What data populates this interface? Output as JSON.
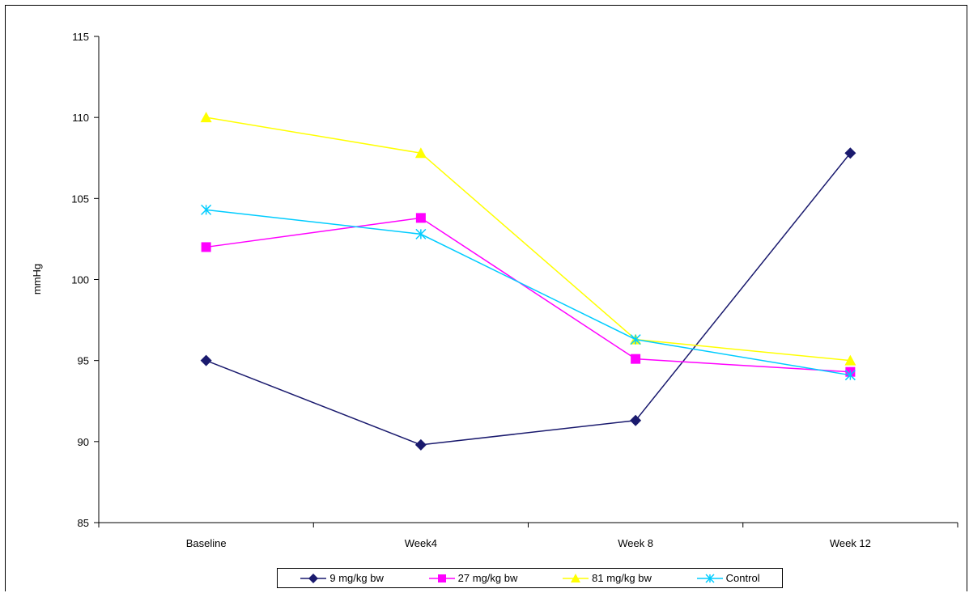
{
  "chart_data": {
    "type": "line",
    "title": "",
    "xlabel": "",
    "ylabel": "mmHg",
    "ylim": [
      85,
      115
    ],
    "yticks": [
      85,
      90,
      95,
      100,
      105,
      110,
      115
    ],
    "categories": [
      "Baseline",
      "Week4",
      "Week 8",
      "Week 12"
    ],
    "grid": false,
    "legend_position": "bottom",
    "series": [
      {
        "name": "9 mg/kg bw",
        "values": [
          95.0,
          89.8,
          91.3,
          107.8
        ],
        "color": "#1a1a6e",
        "marker": "diamond"
      },
      {
        "name": "27 mg/kg bw",
        "values": [
          102.0,
          103.8,
          95.1,
          94.3
        ],
        "color": "#ff00ff",
        "marker": "square"
      },
      {
        "name": "81 mg/kg bw",
        "values": [
          110.0,
          107.8,
          96.3,
          95.0
        ],
        "color": "#ffff00",
        "marker": "triangle"
      },
      {
        "name": "Control",
        "values": [
          104.3,
          102.8,
          96.3,
          94.1
        ],
        "color": "#00ccff",
        "marker": "star"
      }
    ]
  }
}
